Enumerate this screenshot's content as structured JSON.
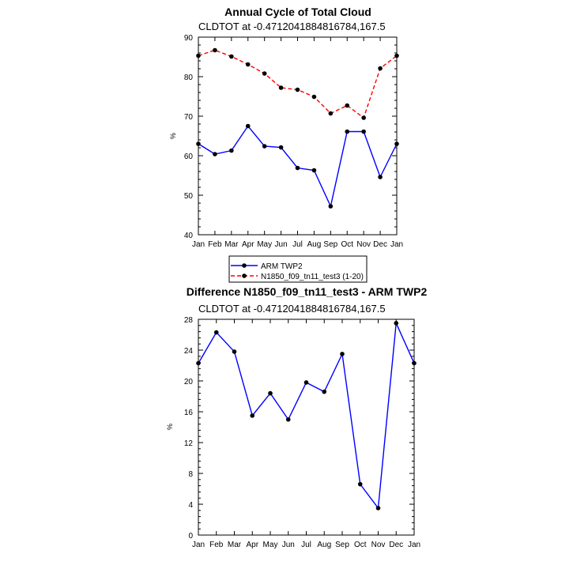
{
  "chart_data": [
    {
      "type": "line",
      "title": "Annual Cycle of Total Cloud",
      "subtitle": "CLDTOT at -0.4712041884816784,167.5",
      "xlabel": "",
      "ylabel": "%",
      "categories": [
        "Jan",
        "Feb",
        "Mar",
        "Apr",
        "May",
        "Jun",
        "Jul",
        "Aug",
        "Sep",
        "Oct",
        "Nov",
        "Dec",
        "Jan"
      ],
      "ylim": [
        40,
        90
      ],
      "yticks": [
        40,
        50,
        60,
        70,
        80,
        90
      ],
      "grid": false,
      "legend": "below",
      "series": [
        {
          "name": "ARM TWP2",
          "color": "#0000ff",
          "dash": "solid",
          "marker_color": "#000000",
          "values": [
            63.0,
            60.4,
            61.3,
            67.5,
            62.4,
            62.1,
            56.9,
            56.3,
            47.2,
            66.1,
            66.1,
            54.6,
            63.0
          ]
        },
        {
          "name": "N1850_f09_tn11_test3 (1-20)",
          "color": "#ff0000",
          "dash": "dashed",
          "marker_color": "#000000",
          "values": [
            85.3,
            86.7,
            85.1,
            83.1,
            80.8,
            77.2,
            76.7,
            74.9,
            70.7,
            72.7,
            69.6,
            82.1,
            85.3
          ]
        }
      ]
    },
    {
      "type": "line",
      "title": "Difference N1850_f09_tn11_test3 - ARM TWP2",
      "subtitle": "CLDTOT at -0.4712041884816784,167.5",
      "xlabel": "",
      "ylabel": "%",
      "categories": [
        "Jan",
        "Feb",
        "Mar",
        "Apr",
        "May",
        "Jun",
        "Jul",
        "Aug",
        "Sep",
        "Oct",
        "Nov",
        "Dec",
        "Jan"
      ],
      "ylim": [
        0,
        28
      ],
      "yticks": [
        0,
        4,
        8,
        12,
        16,
        20,
        24,
        28
      ],
      "grid": false,
      "series": [
        {
          "color": "#0000ff",
          "dash": "solid",
          "marker_color": "#000000",
          "values": [
            22.3,
            26.3,
            23.8,
            15.5,
            18.4,
            15.0,
            19.8,
            18.6,
            23.5,
            6.6,
            3.5,
            27.5,
            22.3
          ]
        }
      ]
    }
  ]
}
